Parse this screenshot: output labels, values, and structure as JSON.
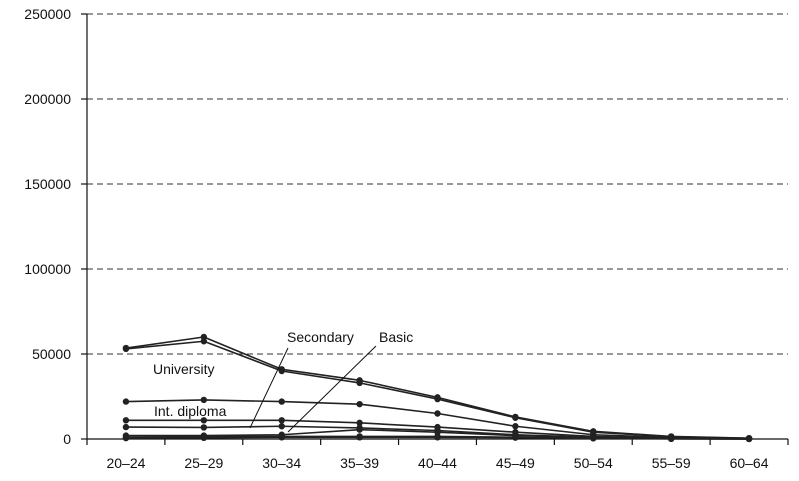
{
  "chart_data": {
    "type": "line",
    "categories": [
      "20–24",
      "25–29",
      "30–34",
      "35–39",
      "40–44",
      "45–49",
      "50–54",
      "55–59",
      "60–64"
    ],
    "ylim": [
      0,
      250000
    ],
    "yticks": [
      0,
      50000,
      100000,
      150000,
      200000,
      250000
    ],
    "ytick_labels": [
      "0",
      "50000",
      "100000",
      "150000",
      "200000",
      "250000"
    ],
    "grid": true,
    "series": [
      {
        "values": [
          53500,
          60000,
          41000,
          34500,
          24500,
          13000,
          4500,
          1500,
          500
        ]
      },
      {
        "values": [
          53000,
          57500,
          40000,
          33000,
          23500,
          12500,
          4000,
          1300,
          400
        ]
      },
      {
        "values": [
          22000,
          23000,
          22000,
          20500,
          15000,
          7500,
          2500,
          800,
          200
        ]
      },
      {
        "values": [
          11000,
          11000,
          11000,
          9500,
          7000,
          4000,
          1500,
          400,
          100
        ]
      },
      {
        "values": [
          7000,
          6800,
          7500,
          6500,
          5000,
          2500,
          1000,
          300,
          100
        ]
      },
      {
        "values": [
          2000,
          2000,
          2500,
          5500,
          4000,
          2000,
          800,
          200,
          50
        ]
      },
      {
        "values": [
          1000,
          1500,
          1500,
          1500,
          1500,
          1000,
          500,
          150,
          50
        ]
      },
      {
        "values": [
          500,
          700,
          1000,
          1000,
          1000,
          800,
          400,
          100,
          20
        ]
      }
    ],
    "annotations": [
      {
        "text": "Secondary"
      },
      {
        "text": "Basic"
      },
      {
        "text": "University"
      },
      {
        "text": "Int. diploma"
      }
    ]
  }
}
